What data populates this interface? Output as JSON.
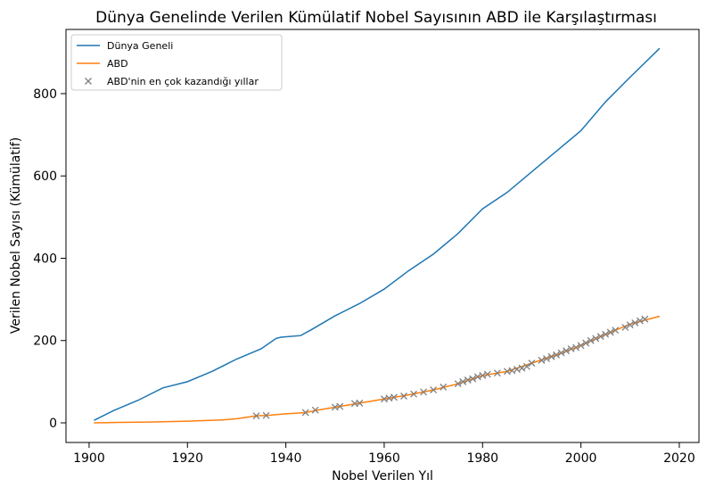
{
  "chart_data": {
    "type": "line",
    "title": "Dünya Genelinde Verilen Kümülatif Nobel Sayısının ABD ile Karşılaştırması",
    "x_label": "Nobel Verilen Yıl",
    "y_label": "Verilen Nobel Sayısı (Kümülatif)",
    "xlim": [
      1895.3,
      2024.0
    ],
    "ylim": [
      -47.7,
      956
    ],
    "xticks": [
      1900,
      1920,
      1940,
      1960,
      1980,
      2000,
      2020
    ],
    "yticks": [
      0,
      200,
      400,
      600,
      800
    ],
    "legend": "upper-left",
    "series": [
      {
        "name": "Dünya Geneli",
        "color": "#1f77b4",
        "mark": "line",
        "x": [
          1901,
          1905,
          1910,
          1915,
          1920,
          1925,
          1930,
          1935,
          1938,
          1939,
          1943,
          1945,
          1950,
          1955,
          1960,
          1965,
          1970,
          1975,
          1980,
          1985,
          1990,
          1995,
          2000,
          2005,
          2010,
          2016
        ],
        "values": [
          6,
          30,
          55,
          85,
          100,
          125,
          155,
          180,
          205,
          208,
          212,
          225,
          260,
          290,
          325,
          370,
          410,
          460,
          520,
          560,
          610,
          660,
          710,
          780,
          840,
          910
        ]
      },
      {
        "name": "ABD",
        "color": "#ff7f0e",
        "mark": "line",
        "x": [
          1901,
          1906,
          1912,
          1920,
          1927,
          1930,
          1934,
          1936,
          1940,
          1944,
          1946,
          1950,
          1955,
          1960,
          1965,
          1970,
          1975,
          1980,
          1985,
          1990,
          1995,
          2000,
          2005,
          2010,
          2016
        ],
        "values": [
          0,
          1,
          2,
          4,
          7,
          10,
          17,
          18,
          22,
          25,
          30,
          38,
          48,
          58,
          68,
          80,
          95,
          115,
          125,
          145,
          165,
          188,
          215,
          240,
          259
        ]
      },
      {
        "name": "ABD'nin en çok kazandığı yıllar",
        "color": "#808080",
        "mark": "x",
        "x": [
          1934,
          1936,
          1944,
          1946,
          1950,
          1951,
          1954,
          1955,
          1960,
          1961,
          1962,
          1964,
          1966,
          1968,
          1970,
          1972,
          1975,
          1976,
          1977,
          1978,
          1979,
          1980,
          1981,
          1983,
          1985,
          1986,
          1987,
          1988,
          1989,
          1990,
          1992,
          1993,
          1994,
          1995,
          1996,
          1997,
          1998,
          1999,
          2000,
          2001,
          2002,
          2003,
          2004,
          2005,
          2006,
          2007,
          2009,
          2010,
          2011,
          2012,
          2013
        ],
        "values": [
          17,
          18,
          25,
          31,
          38,
          40,
          47,
          48,
          58,
          60,
          62,
          65,
          70,
          75,
          80,
          87,
          95,
          100,
          104,
          107,
          112,
          115,
          118,
          121,
          125,
          127,
          130,
          133,
          137,
          145,
          152,
          156,
          161,
          165,
          170,
          175,
          180,
          183,
          188,
          194,
          200,
          205,
          210,
          215,
          220,
          225,
          232,
          238,
          243,
          248,
          252
        ]
      }
    ]
  }
}
